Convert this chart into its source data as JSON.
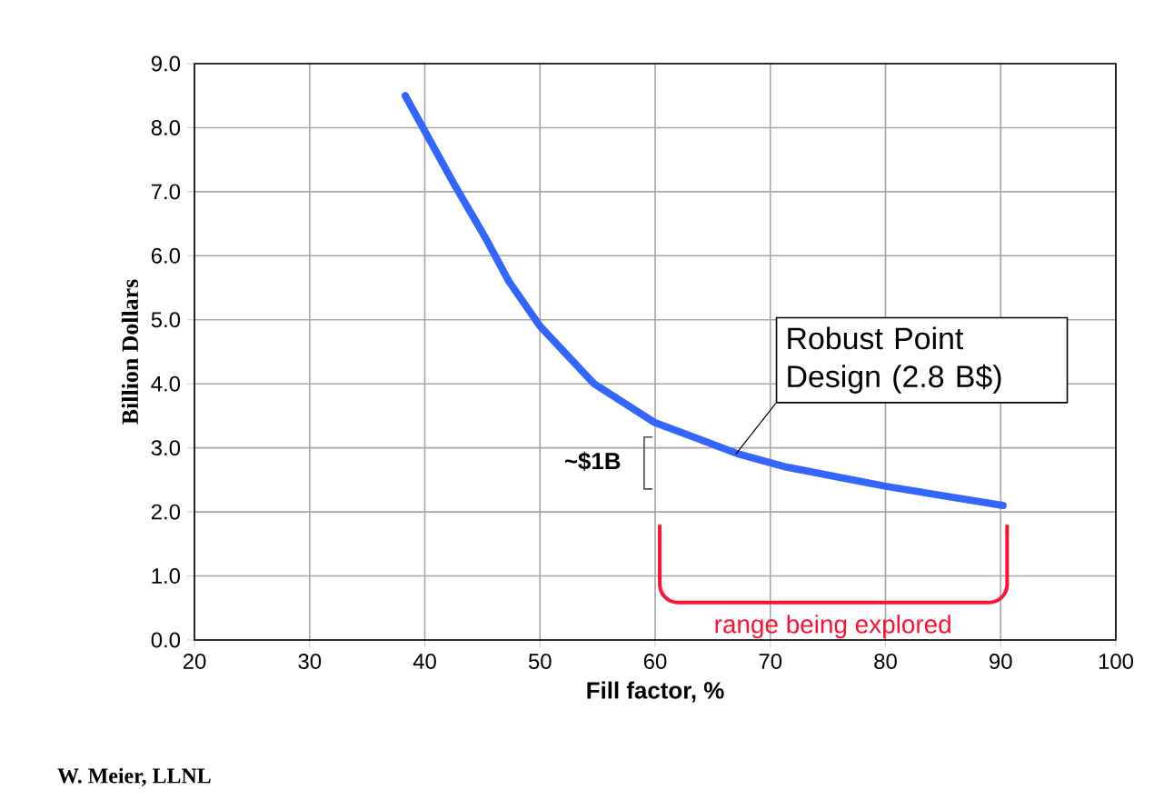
{
  "chart_data": {
    "type": "line",
    "xlabel": "Fill factor, %",
    "ylabel": "Billion Dollars",
    "x": [
      38.3,
      42.6,
      45.2,
      47.3,
      50,
      54.7,
      59.9,
      67.3,
      71.4,
      80,
      90.2
    ],
    "series": [
      {
        "color": "#3366ff",
        "values": [
          8.5,
          7.1,
          6.3,
          5.6,
          4.9,
          4.0,
          3.4,
          2.9,
          2.7,
          2.4,
          2.1
        ]
      }
    ],
    "xlim": [
      20,
      100
    ],
    "xticks": [
      20,
      30,
      40,
      50,
      60,
      70,
      80,
      90,
      100
    ],
    "ylim": [
      0,
      9
    ],
    "yticks": [
      {
        "value": 0,
        "label": "0.0"
      },
      {
        "value": 1,
        "label": "1.0"
      },
      {
        "value": 2,
        "label": "2.0"
      },
      {
        "value": 3,
        "label": "3.0"
      },
      {
        "value": 4,
        "label": "4.0"
      },
      {
        "value": 5,
        "label": "5.0"
      },
      {
        "value": 6,
        "label": "6.0"
      },
      {
        "value": 7,
        "label": "7.0"
      },
      {
        "value": 8,
        "label": "8.0"
      },
      {
        "value": 9,
        "label": "9.0"
      }
    ],
    "grid": true,
    "marker": "none",
    "line_style": "solid",
    "annotations": [
      {
        "text": "Robust Point Design (2.8 B$)",
        "x": 67,
        "y": 2.9
      },
      "~$1B",
      "range being explored",
      "W. Meier, LLNL"
    ]
  }
}
